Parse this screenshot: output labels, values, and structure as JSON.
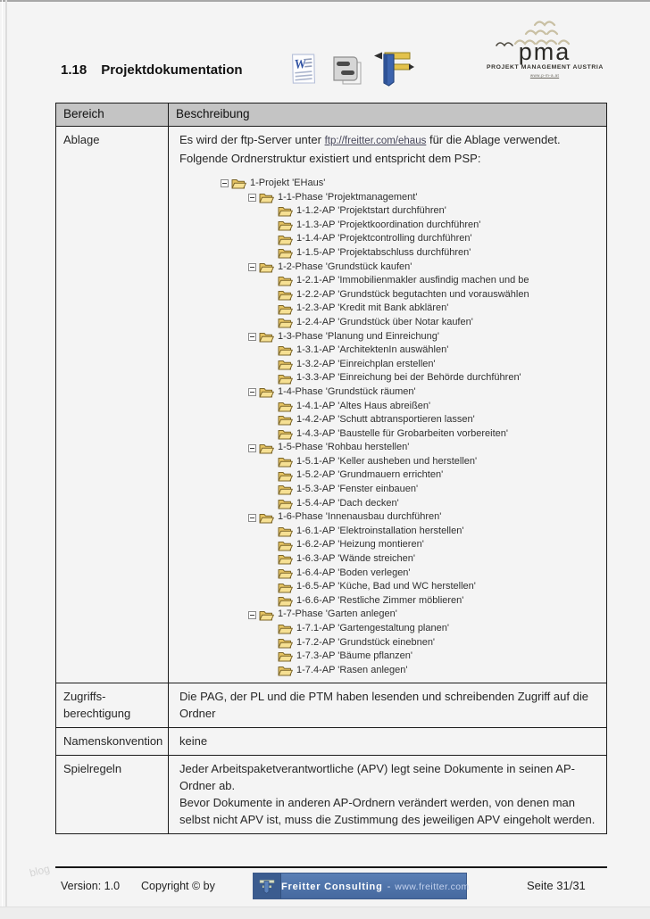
{
  "heading": {
    "number": "1.18",
    "title": "Projektdokumentation"
  },
  "icons": [
    "word-document-icon",
    "diagram-document-icon",
    "gantt-tool-icon",
    "freitter-logo-icon",
    "folder-icon",
    "collapse-minus-icon"
  ],
  "logo": {
    "text": "pma",
    "subtitle": "PROJEKT MANAGEMENT AUSTRIA",
    "tagline": "www.p-m-a.at"
  },
  "table": {
    "headers": [
      "Bereich",
      "Beschreibung"
    ],
    "rows": {
      "ablage": {
        "label": "Ablage",
        "text_before_link": "Es wird der ftp-Server unter ",
        "link": "ftp://freitter.com/ehaus",
        "text_after_link": " für die Ablage verwendet.",
        "line2": "Folgende Ordnerstruktur existiert und entspricht dem PSP:"
      },
      "zugriff": {
        "label": "Zugriffs-berechtigung",
        "text": "Die PAG, der PL und die PTM haben lesenden und schreibenden Zugriff auf die Ordner"
      },
      "namen": {
        "label": "Namenskonvention",
        "text": "keine"
      },
      "spielregeln": {
        "label": "Spielregeln",
        "para1": "Jeder Arbeitspaketverantwortliche (APV) legt seine Dokumente in seinen AP-Ordner ab.",
        "para2": "Bevor Dokumente in anderen AP-Ordnern verändert werden, von denen man selbst nicht APV ist, muss die Zustimmung des jeweiligen APV eingeholt werden."
      }
    }
  },
  "tree": {
    "items": [
      {
        "level": 0,
        "box": true,
        "label": "1-Projekt 'EHaus'"
      },
      {
        "level": 1,
        "box": true,
        "label": "1-1-Phase 'Projektmanagement'"
      },
      {
        "level": 2,
        "box": false,
        "label": "1-1.2-AP 'Projektstart durchführen'"
      },
      {
        "level": 2,
        "box": false,
        "label": "1-1.3-AP 'Projektkoordination durchführen'"
      },
      {
        "level": 2,
        "box": false,
        "label": "1-1.4-AP 'Projektcontrolling durchführen'"
      },
      {
        "level": 2,
        "box": false,
        "label": "1-1.5-AP 'Projektabschluss durchführen'"
      },
      {
        "level": 1,
        "box": true,
        "label": "1-2-Phase 'Grundstück kaufen'"
      },
      {
        "level": 2,
        "box": false,
        "label": "1-2.1-AP 'Immobilienmakler ausfindig machen und be"
      },
      {
        "level": 2,
        "box": false,
        "label": "1-2.2-AP 'Grundstück begutachten und vorauswählen"
      },
      {
        "level": 2,
        "box": false,
        "label": "1-2.3-AP 'Kredit mit Bank abklären'"
      },
      {
        "level": 2,
        "box": false,
        "label": "1-2.4-AP 'Grundstück über Notar kaufen'"
      },
      {
        "level": 1,
        "box": true,
        "label": "1-3-Phase 'Planung und Einreichung'"
      },
      {
        "level": 2,
        "box": false,
        "label": "1-3.1-AP 'ArchitektenIn auswählen'"
      },
      {
        "level": 2,
        "box": false,
        "label": "1-3.2-AP 'Einreichplan erstellen'"
      },
      {
        "level": 2,
        "box": false,
        "label": "1-3.3-AP 'Einreichung bei der Behörde durchführen'"
      },
      {
        "level": 1,
        "box": true,
        "label": "1-4-Phase 'Grundstück räumen'"
      },
      {
        "level": 2,
        "box": false,
        "label": "1-4.1-AP 'Altes Haus abreißen'"
      },
      {
        "level": 2,
        "box": false,
        "label": "1-4.2-AP 'Schutt abtransportieren lassen'"
      },
      {
        "level": 2,
        "box": false,
        "label": "1-4.3-AP 'Baustelle für Grobarbeiten vorbereiten'"
      },
      {
        "level": 1,
        "box": true,
        "label": "1-5-Phase 'Rohbau herstellen'"
      },
      {
        "level": 2,
        "box": false,
        "label": "1-5.1-AP 'Keller ausheben und herstellen'"
      },
      {
        "level": 2,
        "box": false,
        "label": "1-5.2-AP 'Grundmauern errichten'"
      },
      {
        "level": 2,
        "box": false,
        "label": "1-5.3-AP 'Fenster einbauen'"
      },
      {
        "level": 2,
        "box": false,
        "label": "1-5.4-AP 'Dach decken'"
      },
      {
        "level": 1,
        "box": true,
        "label": "1-6-Phase 'Innenausbau durchführen'"
      },
      {
        "level": 2,
        "box": false,
        "label": "1-6.1-AP 'Elektroinstallation herstellen'"
      },
      {
        "level": 2,
        "box": false,
        "label": "1-6.2-AP 'Heizung montieren'"
      },
      {
        "level": 2,
        "box": false,
        "label": "1-6.3-AP 'Wände streichen'"
      },
      {
        "level": 2,
        "box": false,
        "label": "1-6.4-AP 'Boden verlegen'"
      },
      {
        "level": 2,
        "box": false,
        "label": "1-6.5-AP 'Küche, Bad und WC herstellen'"
      },
      {
        "level": 2,
        "box": false,
        "label": "1-6.6-AP 'Restliche Zimmer möblieren'"
      },
      {
        "level": 1,
        "box": true,
        "label": "1-7-Phase 'Garten anlegen'"
      },
      {
        "level": 2,
        "box": false,
        "label": "1-7.1-AP 'Gartengestaltung planen'"
      },
      {
        "level": 2,
        "box": false,
        "label": "1-7.2-AP 'Grundstück einebnen'"
      },
      {
        "level": 2,
        "box": false,
        "label": "1-7.3-AP 'Bäume pflanzen'"
      },
      {
        "level": 2,
        "box": false,
        "label": "1-7.4-AP 'Rasen anlegen'"
      }
    ]
  },
  "footer": {
    "version": "Version: 1.0",
    "copyright": "Copyright © by",
    "banner": {
      "company": "Freitter Consulting",
      "sep": "-",
      "url": "www.freitter.com"
    },
    "page": "Seite 31/31"
  },
  "watermark": "blog",
  "colors": {
    "banner_blue": "#4a70a8",
    "header_gray": "#c4c4c4",
    "folder_yellow": "#eccd6e",
    "page_bg": "#f4f4f4"
  }
}
